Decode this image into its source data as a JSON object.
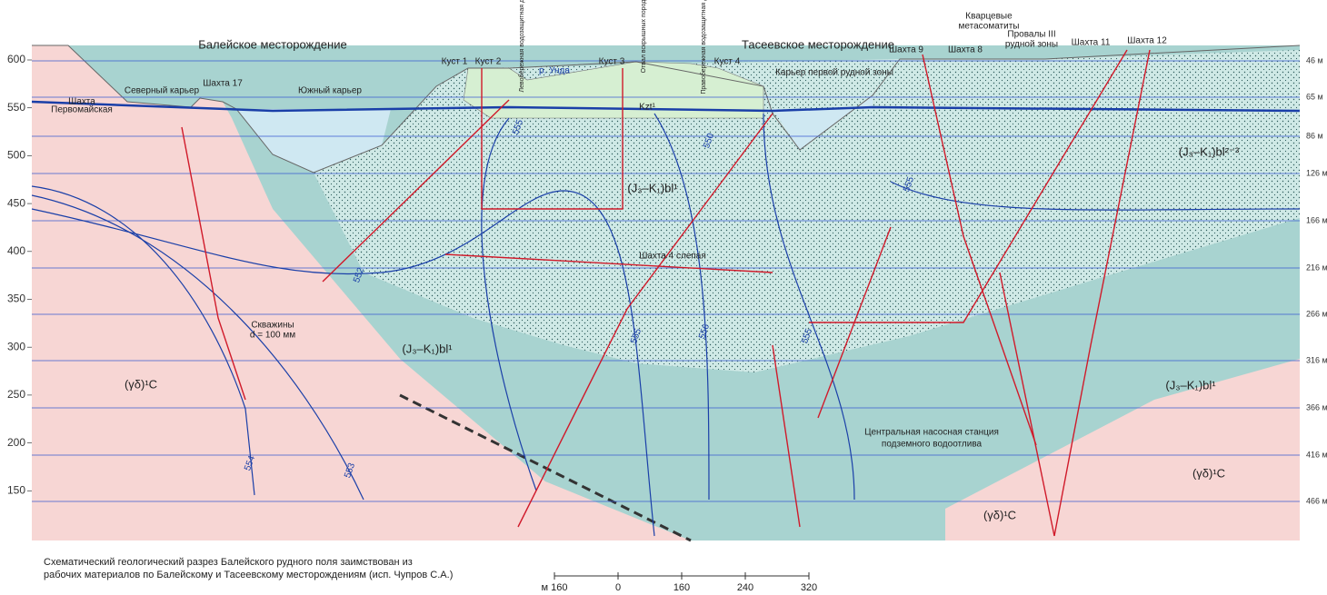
{
  "axis": {
    "left": [
      600,
      550,
      500,
      450,
      400,
      350,
      300,
      250,
      200,
      150
    ],
    "right": [
      "46 м",
      "65 м",
      "86 м",
      "126 м",
      "166 м",
      "216 м",
      "266 м",
      "316 м",
      "366 м",
      "416 м",
      "466 м"
    ]
  },
  "labels": [
    "Балейское месторождение",
    "Тасеевское месторождение",
    "Северный карьер",
    "Шахта",
    "Первомайская",
    "Шахта 17",
    "Южный карьер",
    "Куст 1",
    "Куст 2",
    "Куст 3",
    "Куст 4",
    "р. Унда",
    "Карьер первой рудной зоны",
    "Шахта 9",
    "Шахта 8",
    "Шахта 11",
    "Шахта 12",
    "Кварцевые",
    "метасоматиты",
    "Провалы III",
    "рудной зоны",
    "Шахта 4 слепая",
    "Скважины",
    "d = 100 мм",
    "Центральная насосная станция",
    "подземного водоотлива",
    "Kzt¹"
  ],
  "vertical_labels": [
    "Левобережная водозащитная дамба",
    "Отвал вскрышных пород",
    "Правобережная водозащитная дамба"
  ],
  "formations": [
    "(J₃–K₁)bl¹",
    "(J₃–K₁)bl¹",
    "(J₃–K₁)bl¹",
    "(J₃–K₁)bl²⁻³",
    "(γδ)¹C",
    "(γδ)¹C",
    "(γδ)¹C"
  ],
  "contours": [
    "554",
    "553",
    "552",
    "555",
    "550",
    "555",
    "556",
    "555",
    "555"
  ],
  "caption": [
    "Схематический геологический разрез Балейского рудного поля заимствован из",
    "рабочих материалов по Балейскому и Тасеевскому месторождениям (исп. Чупров С.А.)"
  ],
  "scale": [
    "м 160",
    "0",
    "160",
    "240",
    "320"
  ]
}
